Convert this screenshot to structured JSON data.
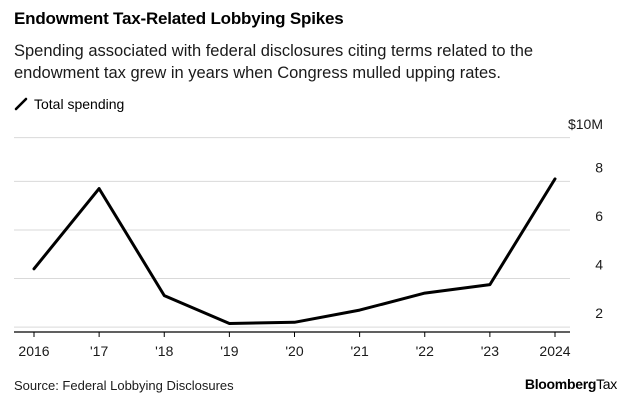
{
  "header": {
    "title": "Endowment Tax-Related Lobbying Spikes",
    "subtitle": "Spending associated with federal disclosures citing terms related to the endowment tax grew in years when Congress mulled upping rates."
  },
  "legend": {
    "label": "Total spending",
    "color": "#000000"
  },
  "footer": {
    "source": "Source: Federal Lobbying Disclosures",
    "brand_bold": "Bloomberg",
    "brand_light": "Tax"
  },
  "chart_data": {
    "type": "line",
    "categories": [
      "2016",
      "'17",
      "'18",
      "'19",
      "'20",
      "'21",
      "'22",
      "'23",
      "2024"
    ],
    "series": [
      {
        "name": "Total spending",
        "values": [
          4.4,
          7.7,
          3.3,
          2.15,
          2.2,
          2.7,
          3.4,
          3.75,
          8.1
        ],
        "color": "#000000"
      }
    ],
    "y_ticks": [
      {
        "value": 10,
        "label": "$10M"
      },
      {
        "value": 8,
        "label": "8"
      },
      {
        "value": 6,
        "label": "6"
      },
      {
        "value": 4,
        "label": "4"
      },
      {
        "value": 2,
        "label": "2"
      }
    ],
    "ylim": [
      1.8,
      10
    ],
    "grid": true
  }
}
